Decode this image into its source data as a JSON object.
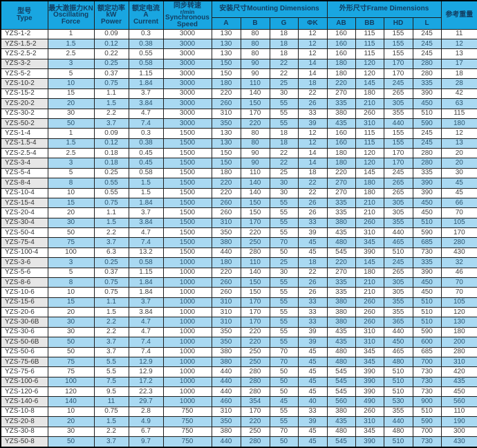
{
  "colors": {
    "header_bg": "#19a6e1",
    "header_text": "#123f63",
    "row_alt_bg": "#a9d9f2",
    "type_alt_bg": "#e6e6e6",
    "border": "#1c1c1c"
  },
  "table": {
    "header": {
      "type_lines": [
        "型号",
        "Type"
      ],
      "force_lines": [
        "最大激振力KN",
        "Oscillating",
        "Force"
      ],
      "power_lines": [
        "额定功率",
        "kW",
        "Power"
      ],
      "current_lines": [
        "额定电流",
        "A",
        "Current"
      ],
      "speed_lines": [
        "同步转速",
        "r/min",
        "Synchronous",
        "Speed"
      ],
      "mounting_label": "安装尺寸Mounting Dimensions",
      "frame_label": "外形尺寸Frame Dimensions",
      "weight_label": "参考重量",
      "subcols": [
        "A",
        "B",
        "G",
        "ΦK",
        "AB",
        "BB",
        "HD",
        "L"
      ]
    },
    "rows": [
      [
        "YZS-1-2",
        "1",
        "0.09",
        "0.3",
        "3000",
        "130",
        "80",
        "18",
        "12",
        "160",
        "115",
        "155",
        "245",
        "11"
      ],
      [
        "YZS-1.5-2",
        "1.5",
        "0.12",
        "0.38",
        "3000",
        "130",
        "80",
        "18",
        "12",
        "160",
        "115",
        "155",
        "245",
        "12"
      ],
      [
        "YZS-2.5-2",
        "2.5",
        "0.22",
        "0.55",
        "3000",
        "130",
        "80",
        "18",
        "12",
        "160",
        "115",
        "155",
        "245",
        "13"
      ],
      [
        "YZS-3-2",
        "3",
        "0.25",
        "0.58",
        "3000",
        "150",
        "90",
        "22",
        "14",
        "180",
        "120",
        "170",
        "280",
        "17"
      ],
      [
        "YZS-5-2",
        "5",
        "0.37",
        "1.15",
        "3000",
        "150",
        "90",
        "22",
        "14",
        "180",
        "120",
        "170",
        "280",
        "18"
      ],
      [
        "YZS-10-2",
        "10",
        "0.75",
        "1.84",
        "3000",
        "180",
        "110",
        "25",
        "18",
        "220",
        "145",
        "245",
        "335",
        "28"
      ],
      [
        "YZS-15-2",
        "15",
        "1.1",
        "3.7",
        "3000",
        "220",
        "140",
        "30",
        "22",
        "270",
        "180",
        "265",
        "390",
        "42"
      ],
      [
        "YZS-20-2",
        "20",
        "1.5",
        "3.84",
        "3000",
        "260",
        "150",
        "55",
        "26",
        "335",
        "210",
        "305",
        "450",
        "63"
      ],
      [
        "YZS-30-2",
        "30",
        "2.2",
        "4.7",
        "3000",
        "310",
        "170",
        "55",
        "33",
        "380",
        "260",
        "355",
        "510",
        "115"
      ],
      [
        "YZS-50-2",
        "50",
        "3.7",
        "7.4",
        "3000",
        "350",
        "220",
        "55",
        "39",
        "435",
        "310",
        "440",
        "590",
        "180"
      ],
      [
        "YZS-1-4",
        "1",
        "0.09",
        "0.3",
        "1500",
        "130",
        "80",
        "18",
        "12",
        "160",
        "115",
        "155",
        "245",
        "12"
      ],
      [
        "YZS-1.5-4",
        "1.5",
        "0.12",
        "0.38",
        "1500",
        "130",
        "80",
        "18",
        "12",
        "160",
        "115",
        "155",
        "245",
        "13"
      ],
      [
        "YZS-2.5-4",
        "2.5",
        "0.18",
        "0.45",
        "1500",
        "150",
        "90",
        "22",
        "14",
        "180",
        "120",
        "170",
        "280",
        "20"
      ],
      [
        "YZS-3-4",
        "3",
        "0.18",
        "0.45",
        "1500",
        "150",
        "90",
        "22",
        "14",
        "180",
        "120",
        "170",
        "280",
        "20"
      ],
      [
        "YZS-5-4",
        "5",
        "0.25",
        "0.58",
        "1500",
        "180",
        "110",
        "25",
        "18",
        "220",
        "145",
        "245",
        "335",
        "30"
      ],
      [
        "YZS-8-4",
        "8",
        "0.55",
        "1.5",
        "1500",
        "220",
        "140",
        "30",
        "22",
        "270",
        "180",
        "265",
        "390",
        "45"
      ],
      [
        "YZS-10-4",
        "10",
        "0.55",
        "1.5",
        "1500",
        "220",
        "140",
        "30",
        "22",
        "270",
        "180",
        "265",
        "390",
        "45"
      ],
      [
        "YZS-15-4",
        "15",
        "0.75",
        "1.84",
        "1500",
        "260",
        "150",
        "55",
        "26",
        "335",
        "210",
        "305",
        "450",
        "66"
      ],
      [
        "YZS-20-4",
        "20",
        "1.1",
        "3.7",
        "1500",
        "260",
        "150",
        "55",
        "26",
        "335",
        "210",
        "305",
        "450",
        "70"
      ],
      [
        "YZS-30-4",
        "30",
        "1.5",
        "3.84",
        "1500",
        "310",
        "170",
        "55",
        "33",
        "380",
        "260",
        "355",
        "510",
        "105"
      ],
      [
        "YZS-50-4",
        "50",
        "2.2",
        "4.7",
        "1500",
        "350",
        "220",
        "55",
        "39",
        "435",
        "310",
        "440",
        "590",
        "170"
      ],
      [
        "YZS-75-4",
        "75",
        "3.7",
        "7.4",
        "1500",
        "380",
        "250",
        "70",
        "45",
        "480",
        "345",
        "465",
        "685",
        "280"
      ],
      [
        "YZS-100-4",
        "100",
        "6.3",
        "13.2",
        "1500",
        "440",
        "280",
        "50",
        "45",
        "545",
        "390",
        "510",
        "730",
        "430"
      ],
      [
        "YZS-3-6",
        "3",
        "0.25",
        "0.58",
        "1000",
        "180",
        "110",
        "25",
        "18",
        "220",
        "145",
        "245",
        "335",
        "32"
      ],
      [
        "YZS-5-6",
        "5",
        "0.37",
        "1.15",
        "1000",
        "220",
        "140",
        "30",
        "22",
        "270",
        "180",
        "265",
        "390",
        "46"
      ],
      [
        "YZS-8-6",
        "8",
        "0.75",
        "1.84",
        "1000",
        "260",
        "150",
        "55",
        "26",
        "335",
        "210",
        "305",
        "450",
        "70"
      ],
      [
        "YZS-10-6",
        "10",
        "0.75",
        "1.84",
        "1000",
        "260",
        "150",
        "55",
        "26",
        "335",
        "210",
        "305",
        "450",
        "70"
      ],
      [
        "YZS-15-6",
        "15",
        "1.1",
        "3.7",
        "1000",
        "310",
        "170",
        "55",
        "33",
        "380",
        "260",
        "355",
        "510",
        "105"
      ],
      [
        "YZS-20-6",
        "20",
        "1.5",
        "3.84",
        "1000",
        "310",
        "170",
        "55",
        "33",
        "380",
        "260",
        "355",
        "510",
        "120"
      ],
      [
        "YZS-30-6B",
        "30",
        "2.2",
        "4.7",
        "1000",
        "310",
        "170",
        "55",
        "33",
        "380",
        "260",
        "365",
        "510",
        "130"
      ],
      [
        "YZS-30-6",
        "30",
        "2.2",
        "4.7",
        "1000",
        "350",
        "220",
        "55",
        "39",
        "435",
        "310",
        "440",
        "590",
        "180"
      ],
      [
        "YZS-50-6B",
        "50",
        "3.7",
        "7.4",
        "1000",
        "350",
        "220",
        "55",
        "39",
        "435",
        "310",
        "450",
        "600",
        "200"
      ],
      [
        "YZS-50-6",
        "50",
        "3.7",
        "7.4",
        "1000",
        "380",
        "250",
        "70",
        "45",
        "480",
        "345",
        "465",
        "685",
        "280"
      ],
      [
        "YZS-75-6B",
        "75",
        "5.5",
        "12.9",
        "1000",
        "380",
        "250",
        "70",
        "45",
        "480",
        "345",
        "480",
        "700",
        "310"
      ],
      [
        "YZS-75-6",
        "75",
        "5.5",
        "12.9",
        "1000",
        "440",
        "280",
        "50",
        "45",
        "545",
        "390",
        "510",
        "730",
        "420"
      ],
      [
        "YZS-100-6",
        "100",
        "7.5",
        "17.2",
        "1000",
        "440",
        "280",
        "50",
        "45",
        "545",
        "390",
        "510",
        "730",
        "435"
      ],
      [
        "YZS-120-6",
        "120",
        "9.5",
        "22.3",
        "1000",
        "440",
        "280",
        "50",
        "45",
        "545",
        "390",
        "510",
        "730",
        "450"
      ],
      [
        "YZS-140-6",
        "140",
        "11",
        "29.7",
        "1000",
        "460",
        "354",
        "45",
        "40",
        "560",
        "490",
        "530",
        "900",
        "560"
      ],
      [
        "YZS-10-8",
        "10",
        "0.75",
        "2.8",
        "750",
        "310",
        "170",
        "55",
        "33",
        "380",
        "260",
        "355",
        "510",
        "110"
      ],
      [
        "YZS-20-8",
        "20",
        "1.5",
        "4.9",
        "750",
        "350",
        "220",
        "55",
        "39",
        "435",
        "310",
        "440",
        "590",
        "190"
      ],
      [
        "YZS-30-8",
        "30",
        "2.2",
        "6.7",
        "750",
        "380",
        "250",
        "70",
        "45",
        "480",
        "345",
        "480",
        "700",
        "300"
      ],
      [
        "YZS-50-8",
        "50",
        "3.7",
        "9.7",
        "750",
        "440",
        "280",
        "50",
        "45",
        "545",
        "390",
        "510",
        "730",
        "430"
      ]
    ]
  }
}
